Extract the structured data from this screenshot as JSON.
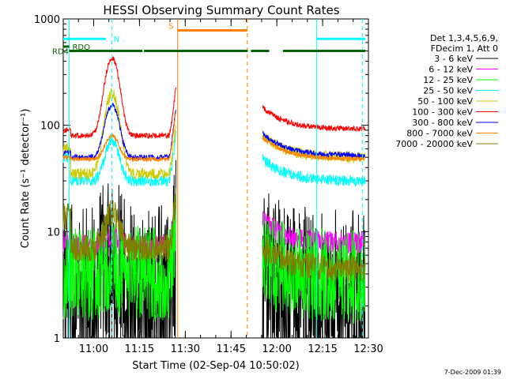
{
  "chart_data": {
    "type": "line",
    "title": "HESSI Observing Summary Count Rates",
    "xlabel": "Start Time (02-Sep-04 10:50:02)",
    "ylabel": "Count Rate (s⁻¹ detector⁻¹)",
    "yscale": "log",
    "xlim": [
      "10:50:02",
      "12:30:00"
    ],
    "ylim": [
      1,
      1000
    ],
    "x_ticks": [
      "11:00",
      "11:15",
      "11:30",
      "11:45",
      "12:00",
      "12:15",
      "12:30"
    ],
    "y_ticks": [
      "1",
      "10",
      "100",
      "1000"
    ],
    "legend": {
      "position": "right",
      "header": [
        "Det 1,3,4,5,6,9,",
        "FDecim 1, Att 0"
      ]
    },
    "series": [
      {
        "name": "3 - 6 keV",
        "color": "#000000",
        "base": 2.2,
        "peak": 6,
        "pre": 0,
        "post": 2,
        "noise": 0.7
      },
      {
        "name": "6 - 12 keV",
        "color": "#ff00ff",
        "base": 7.5,
        "peak": 9,
        "pre": 8.2,
        "post": 7.8,
        "noise": 0.08
      },
      {
        "name": "12 - 25 keV",
        "color": "#00ff00",
        "base": 4,
        "peak": 5,
        "pre": 4.2,
        "post": 3.8,
        "noise": 0.35
      },
      {
        "name": "25 - 50 keV",
        "color": "#00ffff",
        "base": 30,
        "peak": 72,
        "pre": 50,
        "post": 30,
        "noise": 0.04
      },
      {
        "name": "50 - 100 keV",
        "color": "#cccc00",
        "base": 35,
        "peak": 200,
        "pre": 60,
        "post": 50,
        "noise": 0.04
      },
      {
        "name": "100 - 300 keV",
        "color": "#ff0000",
        "base": 80,
        "peak": 430,
        "pre": 90,
        "post": 92,
        "noise": 0.02
      },
      {
        "name": "300 - 800 keV",
        "color": "#0000ff",
        "base": 50,
        "peak": 155,
        "pre": 55,
        "post": 52,
        "noise": 0.02
      },
      {
        "name": "800 - 7000 keV",
        "color": "#ff8000",
        "base": 48,
        "peak": 80,
        "pre": 50,
        "post": 48,
        "noise": 0.015
      },
      {
        "name": "7000 - 20000 keV",
        "color": "#808000",
        "base": 7,
        "peak": 15,
        "pre": 14,
        "post": 4.5,
        "noise": 0.1
      }
    ],
    "annotations": {
      "flags": [
        {
          "label": "N",
          "color": "#00ffff",
          "level": 650,
          "segments": [
            [
              "10:50:02",
              "11:04:00"
            ],
            [
              "12:13:00",
              "12:29:00"
            ]
          ]
        },
        {
          "label": "RDO",
          "color": "#006400",
          "level": 550,
          "segments": [
            [
              "10:50:02",
              "10:52:00"
            ]
          ]
        },
        {
          "label": "RD4",
          "color": "#006400",
          "level": 500,
          "segments": [
            [
              "10:52:00",
              "11:16:00"
            ],
            [
              "11:16:30",
              "11:50:30"
            ],
            [
              "11:51:30",
              "11:57:30"
            ],
            [
              "12:02:00",
              "12:29:00"
            ]
          ]
        },
        {
          "label": "S",
          "color": "#ff8000",
          "level": 780,
          "segments": [
            [
              "11:27:30",
              "11:50:20"
            ]
          ]
        }
      ],
      "vlines": [
        {
          "time": "10:52:00",
          "color": "#00ffff",
          "style": "solid"
        },
        {
          "time": "11:06:00",
          "color": "#00ffff",
          "style": "dashed"
        },
        {
          "time": "11:27:30",
          "color": "#ff8000",
          "style": "solid"
        },
        {
          "time": "11:50:20",
          "color": "#ff8000",
          "style": "dashed"
        },
        {
          "time": "12:13:00",
          "color": "#00ffff",
          "style": "solid"
        },
        {
          "time": "12:28:00",
          "color": "#00ffff",
          "style": "dashed"
        }
      ],
      "data_gap": [
        "11:27:30",
        "11:50:20"
      ]
    }
  },
  "footer": {
    "timestamp": "7-Dec-2009 01:39"
  }
}
